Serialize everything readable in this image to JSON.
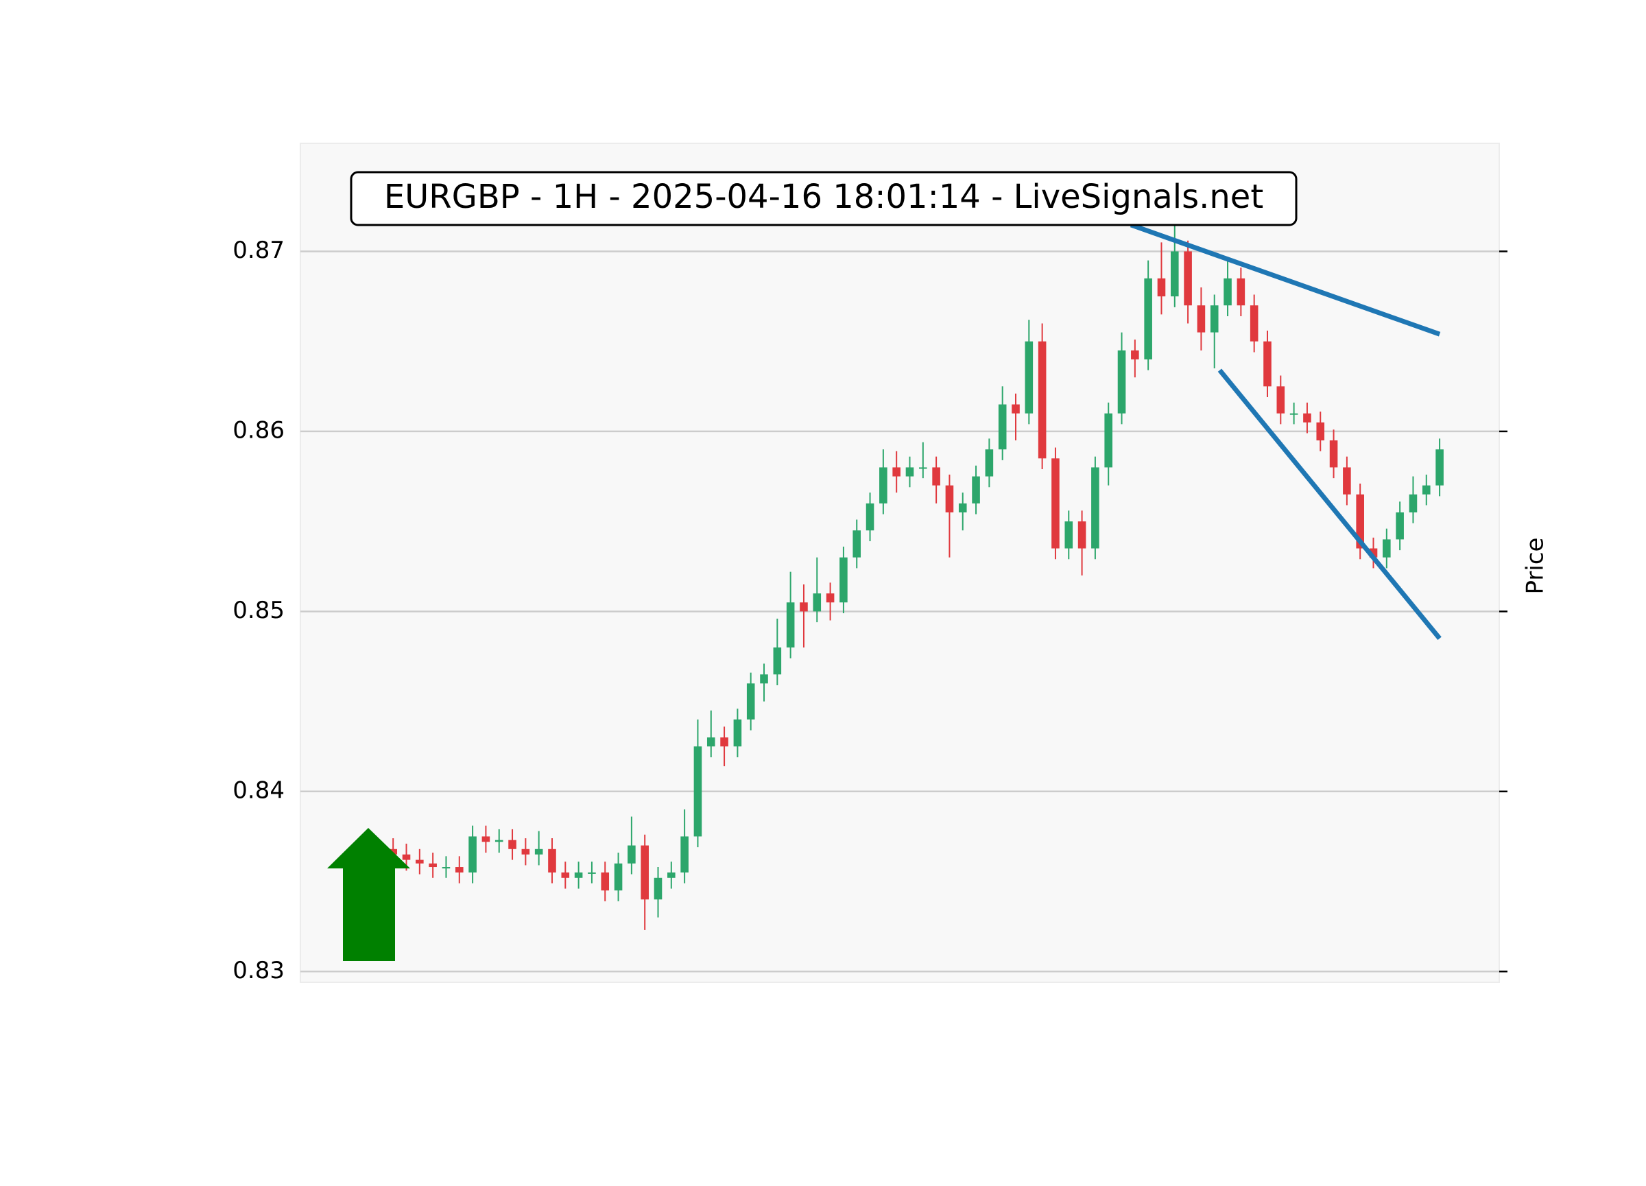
{
  "chart_data": {
    "type": "candlestick",
    "title": "EURGBP - 1H - 2025-04-16 18:01:14 - LiveSignals.net",
    "y_label": "Price",
    "ylim": [
      0.8294,
      0.876
    ],
    "xlim": [
      -7,
      83.5
    ],
    "yticks": [
      0.83,
      0.84,
      0.85,
      0.86,
      0.87
    ],
    "grid": true,
    "up_color": "#2ca66b",
    "down_color": "#e0393e",
    "open": [
      0.8368,
      0.8365,
      0.8362,
      0.836,
      0.8358,
      0.8358,
      0.8355,
      0.8375,
      0.8372,
      0.8373,
      0.8368,
      0.8365,
      0.8368,
      0.8355,
      0.8352,
      0.8355,
      0.8355,
      0.8345,
      0.836,
      0.837,
      0.834,
      0.8352,
      0.8355,
      0.8375,
      0.8425,
      0.843,
      0.8425,
      0.844,
      0.846,
      0.8465,
      0.848,
      0.8505,
      0.85,
      0.851,
      0.8505,
      0.853,
      0.8545,
      0.856,
      0.858,
      0.8575,
      0.858,
      0.858,
      0.857,
      0.8555,
      0.856,
      0.8575,
      0.859,
      0.8615,
      0.861,
      0.865,
      0.8585,
      0.8535,
      0.855,
      0.8535,
      0.858,
      0.861,
      0.8645,
      0.864,
      0.8685,
      0.8675,
      0.87,
      0.867,
      0.8655,
      0.867,
      0.8685,
      0.867,
      0.865,
      0.8625,
      0.861,
      0.861,
      0.8605,
      0.8595,
      0.858,
      0.8565,
      0.8535,
      0.853,
      0.854,
      0.8555,
      0.8565,
      0.857
    ],
    "high": [
      0.8374,
      0.8371,
      0.8368,
      0.8366,
      0.8364,
      0.8364,
      0.8381,
      0.8381,
      0.8379,
      0.8379,
      0.8374,
      0.8378,
      0.8374,
      0.8361,
      0.8361,
      0.8361,
      0.8361,
      0.8366,
      0.8386,
      0.8376,
      0.8358,
      0.8361,
      0.839,
      0.844,
      0.8445,
      0.8436,
      0.8446,
      0.8466,
      0.8471,
      0.8496,
      0.8522,
      0.8515,
      0.853,
      0.8516,
      0.8536,
      0.8551,
      0.8566,
      0.859,
      0.8589,
      0.8586,
      0.8594,
      0.8586,
      0.8576,
      0.8566,
      0.8581,
      0.8596,
      0.8625,
      0.8621,
      0.8662,
      0.866,
      0.8591,
      0.8556,
      0.8556,
      0.8586,
      0.8616,
      0.8655,
      0.8651,
      0.8695,
      0.8705,
      0.8715,
      0.8706,
      0.868,
      0.8676,
      0.8695,
      0.8691,
      0.8676,
      0.8656,
      0.8631,
      0.8616,
      0.8616,
      0.8611,
      0.8601,
      0.8586,
      0.8571,
      0.8541,
      0.8546,
      0.8561,
      0.8575,
      0.8576,
      0.8596
    ],
    "low": [
      0.8359,
      0.8356,
      0.8354,
      0.8352,
      0.8352,
      0.8349,
      0.8349,
      0.8366,
      0.8366,
      0.8362,
      0.8359,
      0.8359,
      0.8349,
      0.8346,
      0.8346,
      0.8349,
      0.8339,
      0.8339,
      0.8354,
      0.8323,
      0.833,
      0.8346,
      0.8349,
      0.8369,
      0.8419,
      0.8414,
      0.8419,
      0.8434,
      0.845,
      0.8459,
      0.8474,
      0.848,
      0.8494,
      0.8495,
      0.8499,
      0.8524,
      0.8539,
      0.8554,
      0.8566,
      0.8569,
      0.8574,
      0.856,
      0.853,
      0.8545,
      0.8554,
      0.8569,
      0.8584,
      0.8595,
      0.8604,
      0.8579,
      0.8529,
      0.8529,
      0.852,
      0.8529,
      0.857,
      0.8604,
      0.863,
      0.8634,
      0.8665,
      0.8669,
      0.866,
      0.8645,
      0.8635,
      0.8664,
      0.8664,
      0.8644,
      0.8619,
      0.8604,
      0.8604,
      0.8599,
      0.8589,
      0.8574,
      0.8559,
      0.8529,
      0.8524,
      0.8524,
      0.8534,
      0.8549,
      0.8559,
      0.8564
    ],
    "close": [
      0.8365,
      0.8362,
      0.836,
      0.8358,
      0.8358,
      0.8355,
      0.8375,
      0.8372,
      0.8373,
      0.8368,
      0.8365,
      0.8368,
      0.8355,
      0.8352,
      0.8355,
      0.8355,
      0.8345,
      0.836,
      0.837,
      0.834,
      0.8352,
      0.8355,
      0.8375,
      0.8425,
      0.843,
      0.8425,
      0.844,
      0.846,
      0.8465,
      0.848,
      0.8505,
      0.85,
      0.851,
      0.8505,
      0.853,
      0.8545,
      0.856,
      0.858,
      0.8575,
      0.858,
      0.858,
      0.857,
      0.8555,
      0.856,
      0.8575,
      0.859,
      0.8615,
      0.861,
      0.865,
      0.8585,
      0.8535,
      0.855,
      0.8535,
      0.858,
      0.861,
      0.8645,
      0.864,
      0.8685,
      0.8675,
      0.87,
      0.867,
      0.8655,
      0.867,
      0.8685,
      0.867,
      0.865,
      0.8625,
      0.861,
      0.861,
      0.8605,
      0.8595,
      0.858,
      0.8565,
      0.8535,
      0.853,
      0.854,
      0.8555,
      0.8565,
      0.857,
      0.859
    ],
    "trendlines": [
      {
        "color": "#1f77b4",
        "x": [
          55.7,
          79
        ],
        "y": [
          0.87147,
          0.8654
        ]
      },
      {
        "color": "#1f77b4",
        "x": [
          62.4,
          79
        ],
        "y": [
          0.8634,
          0.8485
        ]
      }
    ]
  }
}
